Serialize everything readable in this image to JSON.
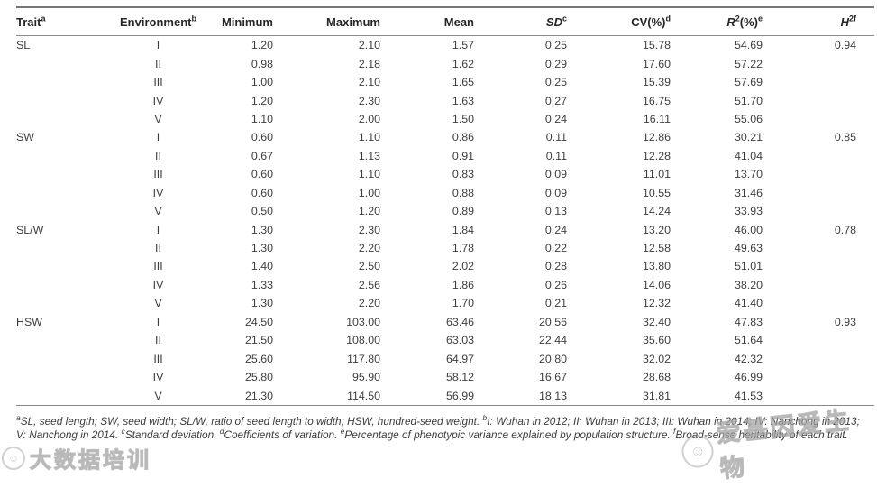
{
  "table": {
    "columns": [
      {
        "id": "trait",
        "align": "left",
        "segments": [
          {
            "text": "Trait",
            "style": "normal"
          },
          {
            "text": "a",
            "style": "sup"
          }
        ]
      },
      {
        "id": "environment",
        "align": "center",
        "segments": [
          {
            "text": "Environment",
            "style": "normal"
          },
          {
            "text": "b",
            "style": "sup"
          }
        ]
      },
      {
        "id": "minimum",
        "align": "right",
        "segments": [
          {
            "text": "Minimum",
            "style": "normal"
          }
        ]
      },
      {
        "id": "maximum",
        "align": "right",
        "segments": [
          {
            "text": "Maximum",
            "style": "normal"
          }
        ]
      },
      {
        "id": "mean",
        "align": "right",
        "segments": [
          {
            "text": "Mean",
            "style": "normal"
          }
        ]
      },
      {
        "id": "sd",
        "align": "right",
        "segments": [
          {
            "text": "SD",
            "style": "italic"
          },
          {
            "text": "c",
            "style": "sup"
          }
        ]
      },
      {
        "id": "cv",
        "align": "right",
        "segments": [
          {
            "text": "CV(%)",
            "style": "normal"
          },
          {
            "text": "d",
            "style": "sup"
          }
        ]
      },
      {
        "id": "r2",
        "align": "right",
        "segments": [
          {
            "text": "R",
            "style": "italic"
          },
          {
            "text": "2",
            "style": "sup"
          },
          {
            "text": "(%)",
            "style": "normal"
          },
          {
            "text": "e",
            "style": "sup"
          }
        ]
      },
      {
        "id": "h2",
        "align": "right",
        "segments": [
          {
            "text": "H",
            "style": "italic"
          },
          {
            "text": "2f",
            "style": "sup"
          }
        ]
      }
    ],
    "groups": [
      {
        "trait": "SL",
        "h2": "0.94",
        "rows": [
          {
            "env": "I",
            "min": "1.20",
            "max": "2.10",
            "mean": "1.57",
            "sd": "0.25",
            "cv": "15.78",
            "r2": "54.69"
          },
          {
            "env": "II",
            "min": "0.98",
            "max": "2.18",
            "mean": "1.62",
            "sd": "0.29",
            "cv": "17.60",
            "r2": "57.22"
          },
          {
            "env": "III",
            "min": "1.00",
            "max": "2.10",
            "mean": "1.65",
            "sd": "0.25",
            "cv": "15.39",
            "r2": "57.69"
          },
          {
            "env": "IV",
            "min": "1.20",
            "max": "2.30",
            "mean": "1.63",
            "sd": "0.27",
            "cv": "16.75",
            "r2": "51.70"
          },
          {
            "env": "V",
            "min": "1.10",
            "max": "2.00",
            "mean": "1.50",
            "sd": "0.24",
            "cv": "16.11",
            "r2": "55.06"
          }
        ]
      },
      {
        "trait": "SW",
        "h2": "0.85",
        "rows": [
          {
            "env": "I",
            "min": "0.60",
            "max": "1.10",
            "mean": "0.86",
            "sd": "0.11",
            "cv": "12.86",
            "r2": "30.21"
          },
          {
            "env": "II",
            "min": "0.67",
            "max": "1.13",
            "mean": "0.91",
            "sd": "0.11",
            "cv": "12.28",
            "r2": "41.04"
          },
          {
            "env": "III",
            "min": "0.60",
            "max": "1.10",
            "mean": "0.83",
            "sd": "0.09",
            "cv": "11.01",
            "r2": "13.70"
          },
          {
            "env": "IV",
            "min": "0.60",
            "max": "1.00",
            "mean": "0.88",
            "sd": "0.09",
            "cv": "10.55",
            "r2": "31.46"
          },
          {
            "env": "V",
            "min": "0.50",
            "max": "1.20",
            "mean": "0.89",
            "sd": "0.13",
            "cv": "14.24",
            "r2": "33.93"
          }
        ]
      },
      {
        "trait": "SL/W",
        "h2": "0.78",
        "rows": [
          {
            "env": "I",
            "min": "1.30",
            "max": "2.30",
            "mean": "1.84",
            "sd": "0.24",
            "cv": "13.20",
            "r2": "46.00"
          },
          {
            "env": "II",
            "min": "1.30",
            "max": "2.20",
            "mean": "1.78",
            "sd": "0.22",
            "cv": "12.58",
            "r2": "49.63"
          },
          {
            "env": "III",
            "min": "1.40",
            "max": "2.50",
            "mean": "2.02",
            "sd": "0.28",
            "cv": "13.80",
            "r2": "51.01"
          },
          {
            "env": "IV",
            "min": "1.33",
            "max": "2.56",
            "mean": "1.86",
            "sd": "0.26",
            "cv": "14.06",
            "r2": "38.20"
          },
          {
            "env": "V",
            "min": "1.30",
            "max": "2.20",
            "mean": "1.70",
            "sd": "0.21",
            "cv": "12.32",
            "r2": "41.40"
          }
        ]
      },
      {
        "trait": "HSW",
        "h2": "0.93",
        "rows": [
          {
            "env": "I",
            "min": "24.50",
            "max": "103.00",
            "mean": "63.46",
            "sd": "20.56",
            "cv": "32.40",
            "r2": "47.83"
          },
          {
            "env": "II",
            "min": "21.50",
            "max": "108.00",
            "mean": "63.03",
            "sd": "22.44",
            "cv": "35.60",
            "r2": "51.64"
          },
          {
            "env": "III",
            "min": "25.60",
            "max": "117.80",
            "mean": "64.97",
            "sd": "20.80",
            "cv": "32.02",
            "r2": "42.32"
          },
          {
            "env": "IV",
            "min": "25.80",
            "max": "95.90",
            "mean": "58.12",
            "sd": "16.67",
            "cv": "28.68",
            "r2": "46.99"
          },
          {
            "env": "V",
            "min": "21.30",
            "max": "114.50",
            "mean": "56.99",
            "sd": "18.13",
            "cv": "31.81",
            "r2": "41.53"
          }
        ]
      }
    ]
  },
  "footnote": {
    "segments": [
      {
        "sup": "a",
        "text": "SL, seed length; SW, seed width; SL/W, ratio of seed length to width; HSW, hundred-seed weight. "
      },
      {
        "sup": "b",
        "text": "I: Wuhan in 2012; II: Wuhan in 2013; III: Wuhan in 2014; IV: Nanchong in 2013; V: Nanchong in 2014. "
      },
      {
        "sup": "c",
        "text": "Standard deviation. "
      },
      {
        "sup": "d",
        "text": "Coefficients of variation. "
      },
      {
        "sup": "e",
        "text": "Percentage of phenotypic variance explained by population structure. "
      },
      {
        "sup": "f",
        "text": "Broad-sense heritability of each trait."
      }
    ]
  },
  "watermarks": {
    "left": {
      "text": "大数据培训",
      "logo_glyph": "☺"
    },
    "right": {
      "text": "爱基因爱生物",
      "logo_glyph": "☺"
    }
  }
}
